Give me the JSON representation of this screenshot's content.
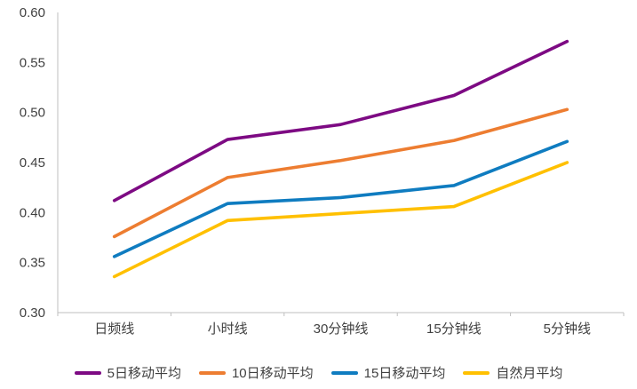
{
  "chart_data": {
    "type": "line",
    "title": "",
    "xlabel": "",
    "ylabel": "",
    "categories": [
      "日频线",
      "小时线",
      "30分钟线",
      "15分钟线",
      "5分钟线"
    ],
    "series": [
      {
        "name": "5日移动平均",
        "color": "#7D0A83",
        "values": [
          0.412,
          0.473,
          0.488,
          0.517,
          0.571
        ]
      },
      {
        "name": "10日移动平均",
        "color": "#ED7D31",
        "values": [
          0.376,
          0.435,
          0.452,
          0.472,
          0.503
        ]
      },
      {
        "name": "15日移动平均",
        "color": "#0F7CC0",
        "values": [
          0.356,
          0.409,
          0.415,
          0.427,
          0.471
        ]
      },
      {
        "name": "自然月平均",
        "color": "#FFC000",
        "values": [
          0.336,
          0.392,
          0.399,
          0.406,
          0.45
        ]
      }
    ],
    "ylim": [
      0.3,
      0.6
    ],
    "yticks": [
      "0.30",
      "0.35",
      "0.40",
      "0.45",
      "0.50",
      "0.55",
      "0.60"
    ],
    "grid": false,
    "legend_position": "bottom"
  },
  "style": {
    "axis_color": "#BFBFBF",
    "tick_label_color": "#404040",
    "tick_font_size": 15,
    "category_font_size": 15,
    "line_width": 3.6
  }
}
